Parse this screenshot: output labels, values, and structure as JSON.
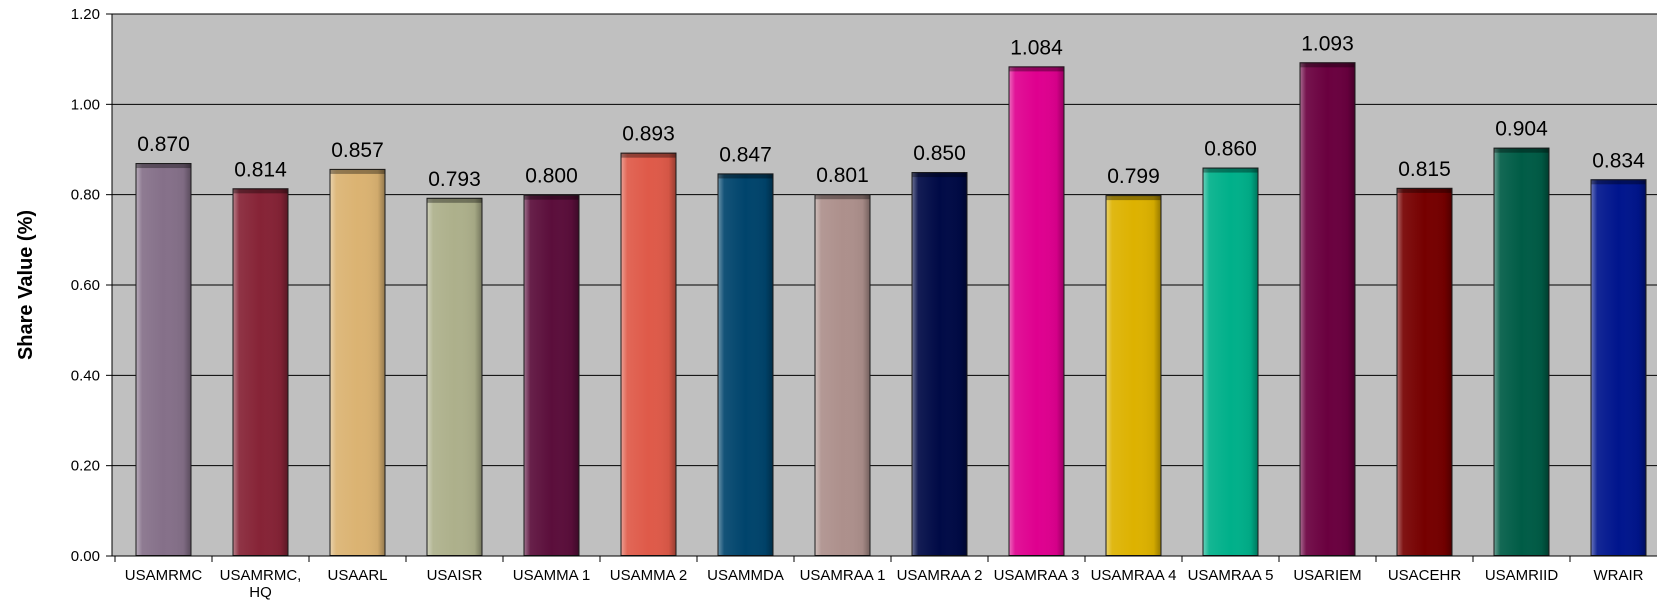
{
  "chart_data": {
    "type": "bar",
    "title": "",
    "xlabel": "",
    "ylabel": "Share Value (%)",
    "ylim": [
      0,
      1.2
    ],
    "yticks": [
      "0.00",
      "0.20",
      "0.40",
      "0.60",
      "0.80",
      "1.00",
      "1.20"
    ],
    "grid": true,
    "plot_background": "#c0c0c0",
    "categories": [
      [
        "USAMRMC"
      ],
      [
        "USAMRMC,",
        "HQ"
      ],
      [
        "USAARL"
      ],
      [
        "USAISR"
      ],
      [
        "USAMMA 1"
      ],
      [
        "USAMMA 2"
      ],
      [
        "USAMMDA"
      ],
      [
        "USAMRAA 1"
      ],
      [
        "USAMRAA 2"
      ],
      [
        "USAMRAA 3"
      ],
      [
        "USAMRAA 4"
      ],
      [
        "USAMRAA 5"
      ],
      [
        "USARIEM"
      ],
      [
        "USACEHR"
      ],
      [
        "USAMRIID"
      ],
      [
        "WRAIR"
      ]
    ],
    "values": [
      0.87,
      0.814,
      0.857,
      0.793,
      0.8,
      0.893,
      0.847,
      0.801,
      0.85,
      1.084,
      0.799,
      0.86,
      1.093,
      0.815,
      0.904,
      0.834
    ],
    "value_labels": [
      "0.870",
      "0.814",
      "0.857",
      "0.793",
      "0.800",
      "0.893",
      "0.847",
      "0.801",
      "0.850",
      "1.084",
      "0.799",
      "0.860",
      "1.093",
      "0.815",
      "0.904",
      "0.834"
    ],
    "colors": [
      "#857089",
      "#862336",
      "#dbb372",
      "#adb08b",
      "#5b0e3b",
      "#df5a49",
      "#00446c",
      "#ad908c",
      "#000a46",
      "#df008f",
      "#ddb200",
      "#00b08a",
      "#6a003f",
      "#760000",
      "#005c46",
      "#00158d"
    ]
  }
}
